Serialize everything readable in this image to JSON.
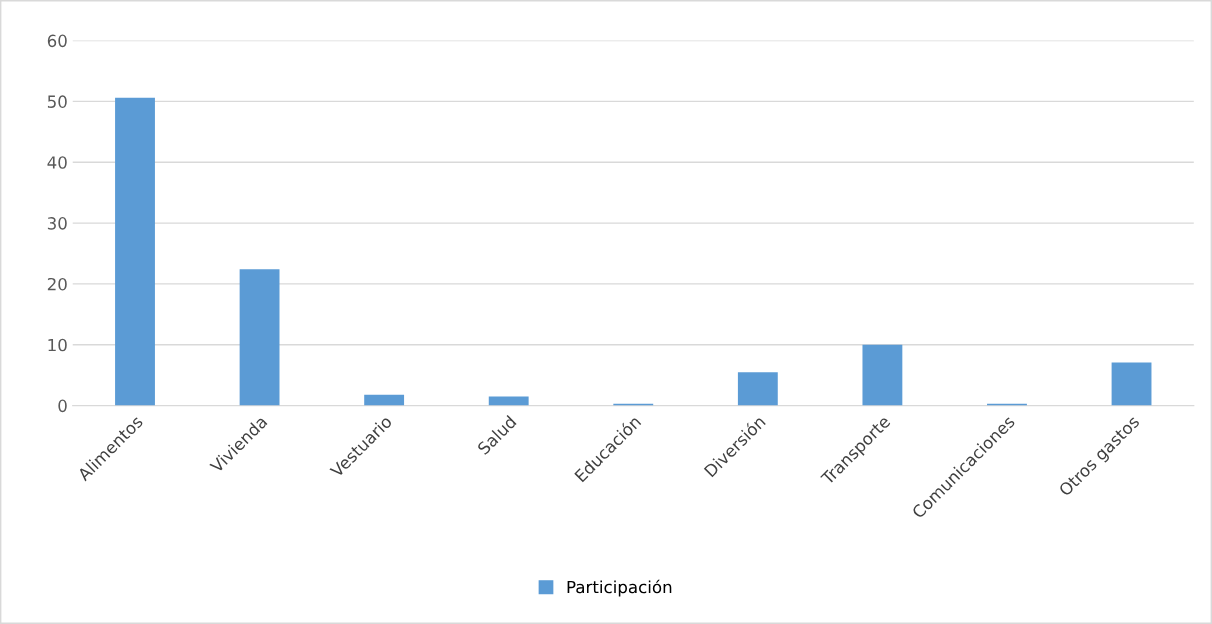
{
  "chart_data": {
    "type": "bar",
    "categories": [
      "Alimentos",
      "Vivienda",
      "Vestuario",
      "Salud",
      "Educación",
      "Diversión",
      "Transporte",
      "Comunicaciones",
      "Otros gastos"
    ],
    "series": [
      {
        "name": "Participación",
        "color": "#5b9bd5",
        "values": [
          50.6,
          22.4,
          1.8,
          1.5,
          0.3,
          5.5,
          10.0,
          0.3,
          7.1
        ]
      }
    ],
    "ylim": [
      0,
      60
    ],
    "yticks": [
      0,
      10,
      20,
      30,
      40,
      50,
      60
    ],
    "grid": "y",
    "legend": "bottom"
  }
}
